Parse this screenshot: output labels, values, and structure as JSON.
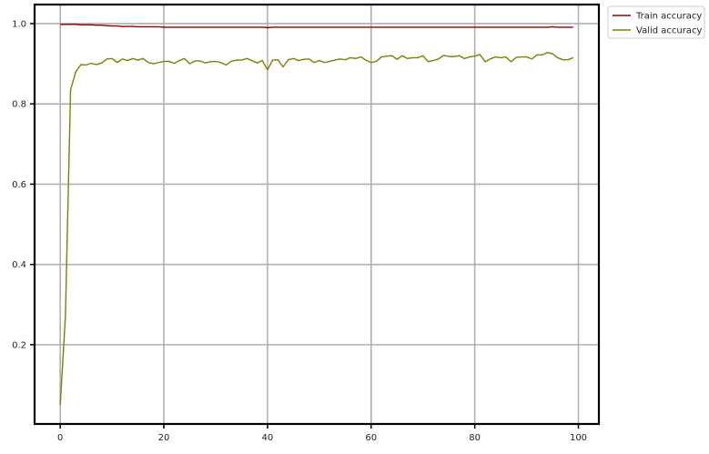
{
  "chart_data": {
    "type": "line",
    "title": "",
    "xlabel": "",
    "ylabel": "",
    "xlim": [
      -4.95,
      103.95
    ],
    "ylim": [
      0.0025,
      1.0475
    ],
    "xticks": [
      0,
      20,
      40,
      60,
      80,
      100
    ],
    "yticks": [
      0.2,
      0.4,
      0.6,
      0.8,
      1.0
    ],
    "grid": true,
    "legend_position": "outside-top-right",
    "series": [
      {
        "name": "Train accuracy",
        "color": "#8b0000",
        "x": [
          0,
          1,
          2,
          3,
          4,
          5,
          6,
          7,
          8,
          9,
          10,
          11,
          12,
          13,
          14,
          15,
          16,
          17,
          18,
          19,
          20,
          21,
          22,
          23,
          24,
          25,
          26,
          27,
          28,
          29,
          30,
          31,
          32,
          33,
          34,
          35,
          36,
          37,
          38,
          39,
          40,
          41,
          42,
          43,
          44,
          45,
          46,
          47,
          48,
          49,
          50,
          51,
          52,
          53,
          54,
          55,
          56,
          57,
          58,
          59,
          60,
          61,
          62,
          63,
          64,
          65,
          66,
          67,
          68,
          69,
          70,
          71,
          72,
          73,
          74,
          75,
          76,
          77,
          78,
          79,
          80,
          81,
          82,
          83,
          84,
          85,
          86,
          87,
          88,
          89,
          90,
          91,
          92,
          93,
          94,
          95,
          96,
          97,
          98,
          99
        ],
        "y": [
          0.998,
          0.998,
          0.998,
          0.998,
          0.997,
          0.997,
          0.997,
          0.996,
          0.996,
          0.995,
          0.994,
          0.994,
          0.993,
          0.993,
          0.993,
          0.992,
          0.992,
          0.992,
          0.992,
          0.992,
          0.991,
          0.991,
          0.991,
          0.991,
          0.991,
          0.991,
          0.991,
          0.991,
          0.991,
          0.991,
          0.991,
          0.991,
          0.991,
          0.991,
          0.991,
          0.991,
          0.991,
          0.991,
          0.991,
          0.991,
          0.99,
          0.991,
          0.991,
          0.991,
          0.991,
          0.991,
          0.991,
          0.991,
          0.991,
          0.991,
          0.991,
          0.991,
          0.991,
          0.991,
          0.991,
          0.991,
          0.991,
          0.991,
          0.991,
          0.991,
          0.991,
          0.991,
          0.991,
          0.991,
          0.991,
          0.991,
          0.991,
          0.991,
          0.991,
          0.991,
          0.991,
          0.991,
          0.991,
          0.991,
          0.991,
          0.991,
          0.991,
          0.991,
          0.991,
          0.991,
          0.991,
          0.991,
          0.991,
          0.991,
          0.991,
          0.991,
          0.991,
          0.991,
          0.991,
          0.991,
          0.991,
          0.991,
          0.991,
          0.991,
          0.991,
          0.992,
          0.991,
          0.991,
          0.991,
          0.991
        ]
      },
      {
        "name": "Valid accuracy",
        "color": "#808000",
        "x": [
          0,
          1,
          2,
          3,
          4,
          5,
          6,
          7,
          8,
          9,
          10,
          11,
          12,
          13,
          14,
          15,
          16,
          17,
          18,
          19,
          20,
          21,
          22,
          23,
          24,
          25,
          26,
          27,
          28,
          29,
          30,
          31,
          32,
          33,
          34,
          35,
          36,
          37,
          38,
          39,
          40,
          41,
          42,
          43,
          44,
          45,
          46,
          47,
          48,
          49,
          50,
          51,
          52,
          53,
          54,
          55,
          56,
          57,
          58,
          59,
          60,
          61,
          62,
          63,
          64,
          65,
          66,
          67,
          68,
          69,
          70,
          71,
          72,
          73,
          74,
          75,
          76,
          77,
          78,
          79,
          80,
          81,
          82,
          83,
          84,
          85,
          86,
          87,
          88,
          89,
          90,
          91,
          92,
          93,
          94,
          95,
          96,
          97,
          98,
          99
        ],
        "y": [
          0.05,
          0.27,
          0.835,
          0.88,
          0.898,
          0.897,
          0.901,
          0.898,
          0.902,
          0.912,
          0.913,
          0.903,
          0.912,
          0.908,
          0.913,
          0.909,
          0.913,
          0.903,
          0.9,
          0.903,
          0.906,
          0.906,
          0.901,
          0.908,
          0.913,
          0.9,
          0.907,
          0.907,
          0.902,
          0.905,
          0.906,
          0.903,
          0.897,
          0.906,
          0.909,
          0.909,
          0.913,
          0.908,
          0.902,
          0.908,
          0.885,
          0.909,
          0.91,
          0.892,
          0.91,
          0.913,
          0.908,
          0.911,
          0.912,
          0.903,
          0.908,
          0.903,
          0.906,
          0.909,
          0.912,
          0.91,
          0.915,
          0.913,
          0.917,
          0.909,
          0.903,
          0.906,
          0.917,
          0.919,
          0.92,
          0.911,
          0.92,
          0.913,
          0.915,
          0.915,
          0.92,
          0.905,
          0.908,
          0.912,
          0.921,
          0.918,
          0.918,
          0.92,
          0.913,
          0.917,
          0.919,
          0.923,
          0.905,
          0.912,
          0.917,
          0.915,
          0.917,
          0.905,
          0.916,
          0.917,
          0.917,
          0.912,
          0.922,
          0.922,
          0.928,
          0.925,
          0.915,
          0.91,
          0.91,
          0.915
        ]
      }
    ]
  }
}
